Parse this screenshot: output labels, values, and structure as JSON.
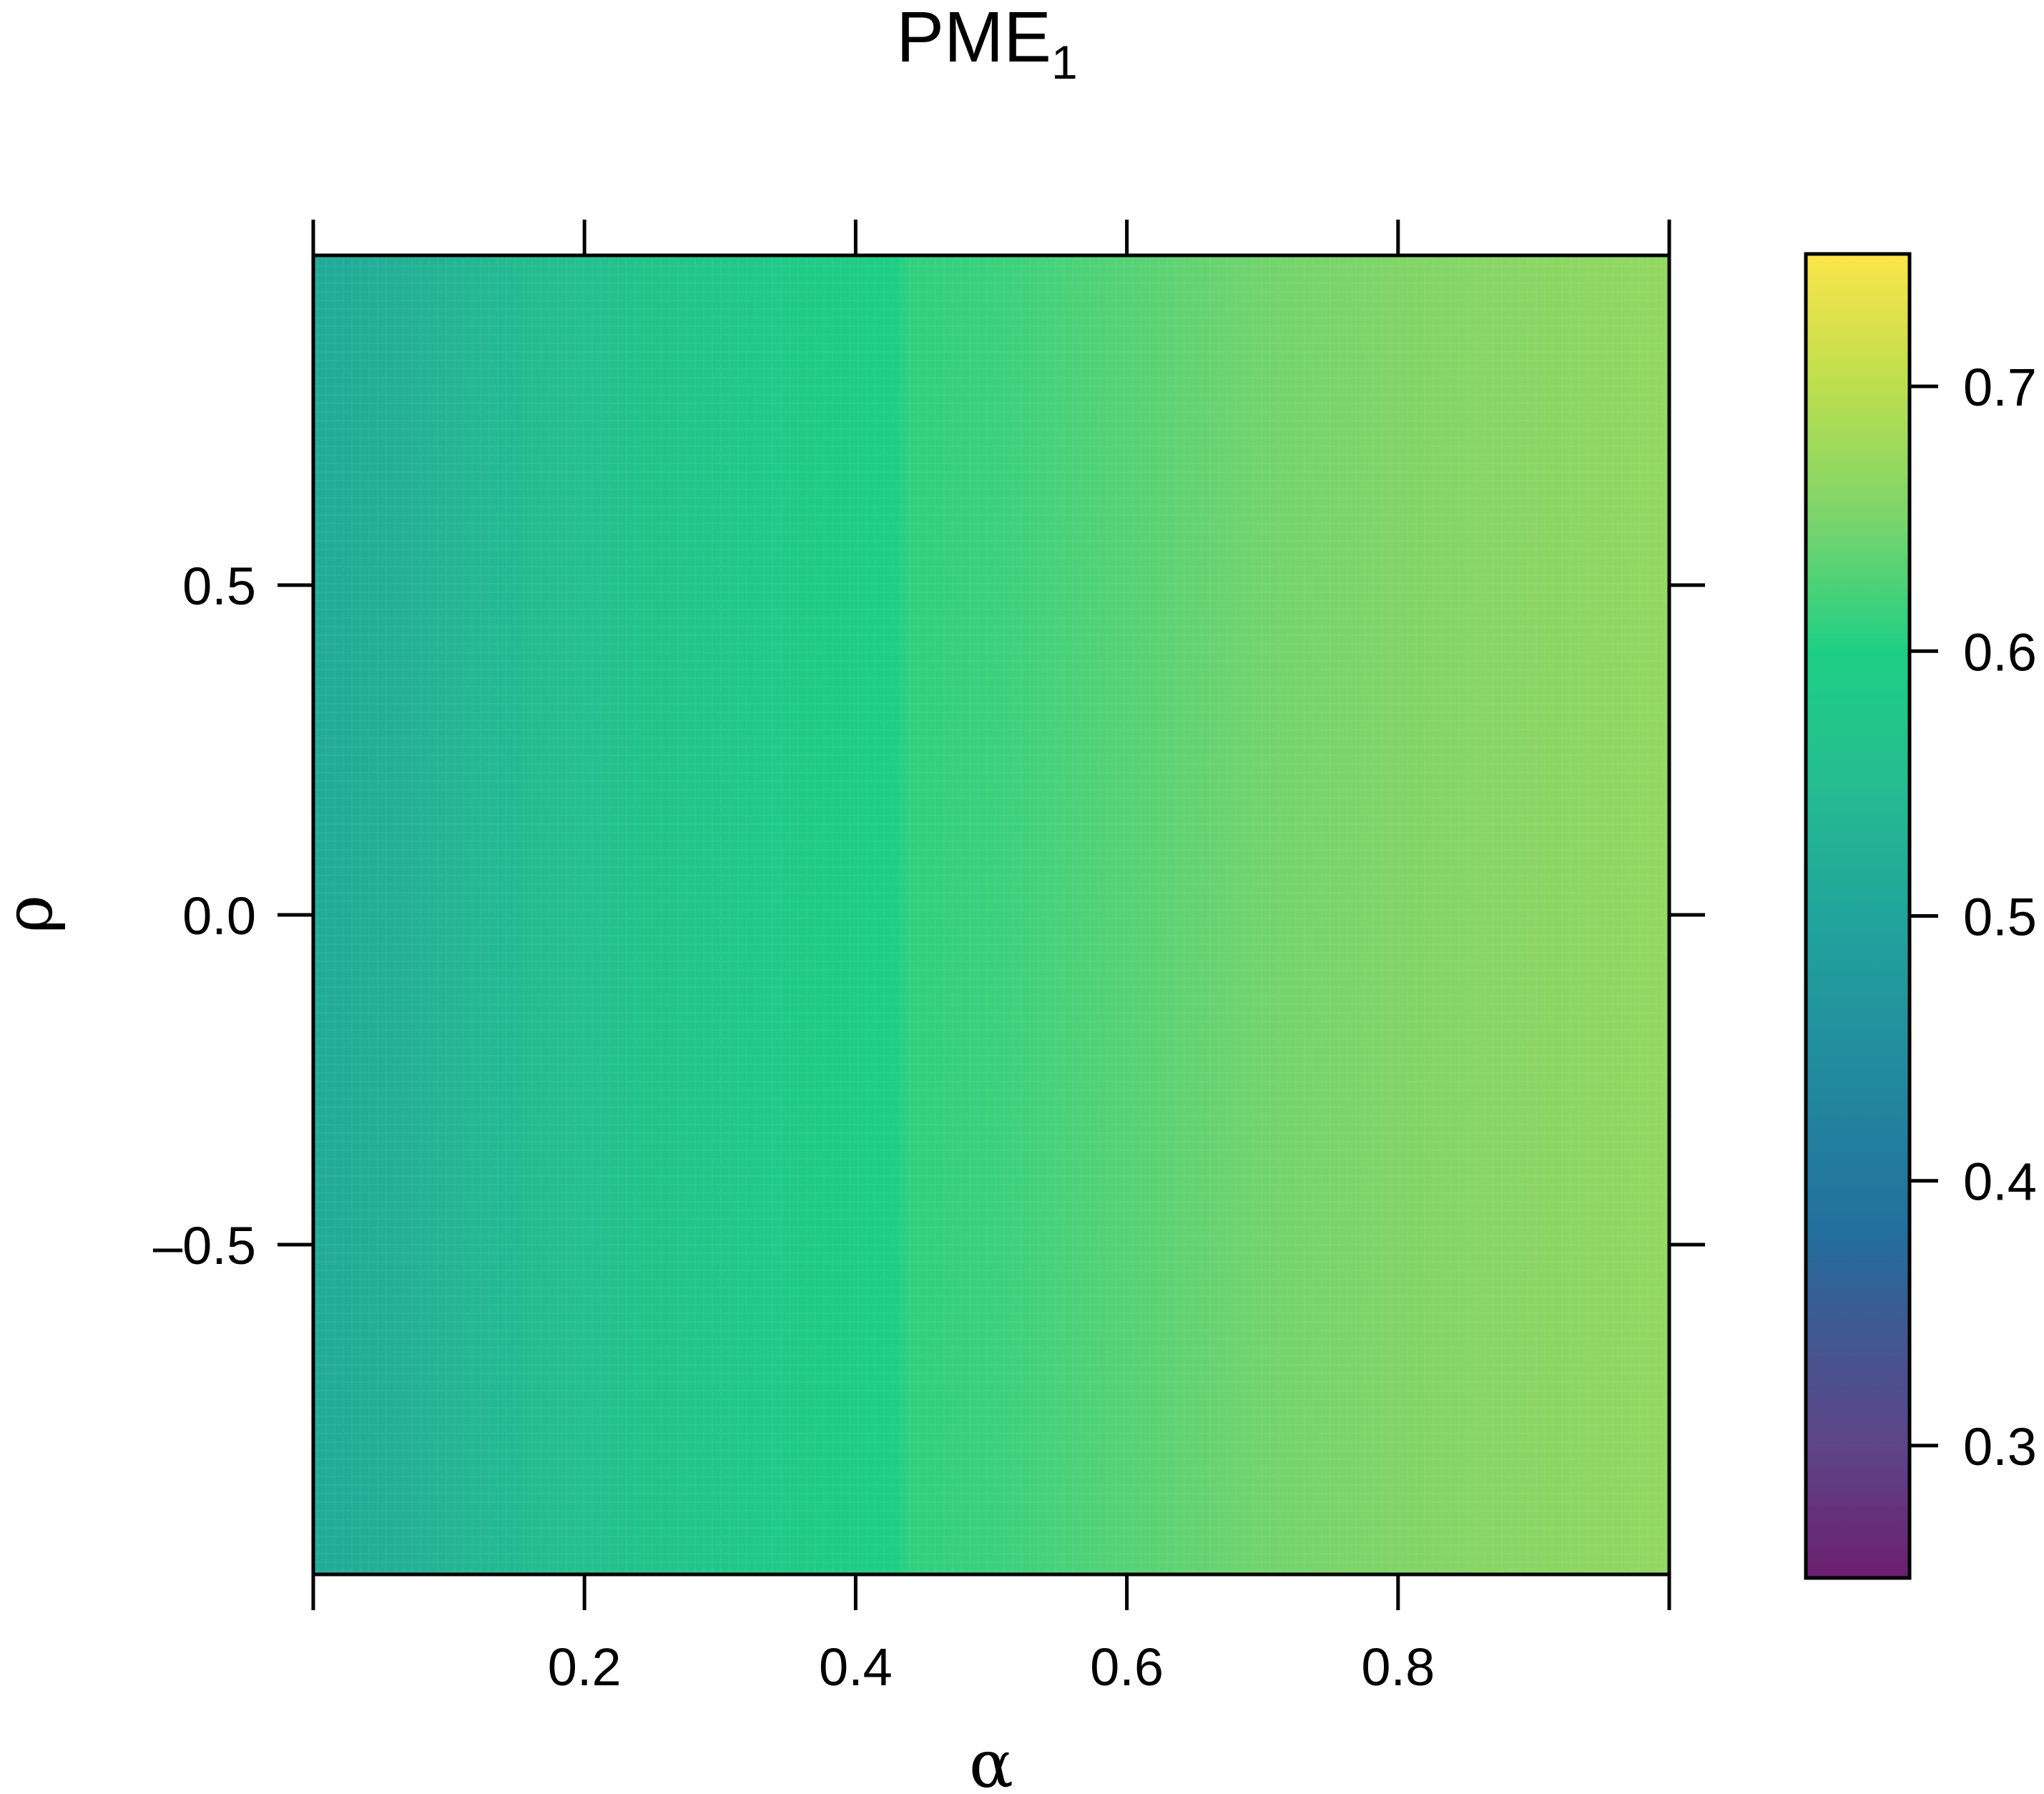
{
  "chart_data": {
    "type": "heatmap",
    "title": {
      "main": "PME",
      "subscript": "1"
    },
    "xlabel": "α",
    "ylabel": "ρ",
    "xlim": [
      0,
      1
    ],
    "ylim": [
      -1,
      1
    ],
    "x_ticks": [
      {
        "value": 0.2,
        "label": "0.2"
      },
      {
        "value": 0.4,
        "label": "0.4"
      },
      {
        "value": 0.6,
        "label": "0.6"
      },
      {
        "value": 0.8,
        "label": "0.8"
      }
    ],
    "x_tick_marks": [
      0,
      0.2,
      0.4,
      0.6,
      0.8,
      1.0
    ],
    "y_ticks": [
      {
        "value": 0.5,
        "label": "0.5"
      },
      {
        "value": 0.0,
        "label": "0.0"
      },
      {
        "value": -0.5,
        "label": "–0.5"
      }
    ],
    "colorbar": {
      "range": [
        0.25,
        0.75
      ],
      "ticks": [
        {
          "value": 0.3,
          "label": "0.3"
        },
        {
          "value": 0.4,
          "label": "0.4"
        },
        {
          "value": 0.5,
          "label": "0.5"
        },
        {
          "value": 0.6,
          "label": "0.6"
        },
        {
          "value": 0.7,
          "label": "0.7"
        }
      ],
      "colors": [
        {
          "value": 0.25,
          "color": "#6b1f6e"
        },
        {
          "value": 0.3,
          "color": "#5e4488"
        },
        {
          "value": 0.35,
          "color": "#3b5b93"
        },
        {
          "value": 0.38,
          "color": "#226f9d"
        },
        {
          "value": 0.45,
          "color": "#228e9e"
        },
        {
          "value": 0.5,
          "color": "#21a49c"
        },
        {
          "value": 0.55,
          "color": "#25bc90"
        },
        {
          "value": 0.6,
          "color": "#1ecf84"
        },
        {
          "value": 0.65,
          "color": "#7bd46c"
        },
        {
          "value": 0.7,
          "color": "#bcde4e"
        },
        {
          "value": 0.75,
          "color": "#fbe54a"
        }
      ]
    },
    "z_by_alpha": {
      "alpha": [
        0.0,
        0.05,
        0.1,
        0.2,
        0.3,
        0.4,
        0.43,
        0.44,
        0.5,
        0.6,
        0.7,
        0.8,
        0.9,
        1.0
      ],
      "z": [
        0.515,
        0.52,
        0.535,
        0.56,
        0.58,
        0.595,
        0.6,
        0.61,
        0.615,
        0.63,
        0.645,
        0.655,
        0.662,
        0.668
      ]
    },
    "grid": false,
    "legend": "colorbar-right"
  }
}
